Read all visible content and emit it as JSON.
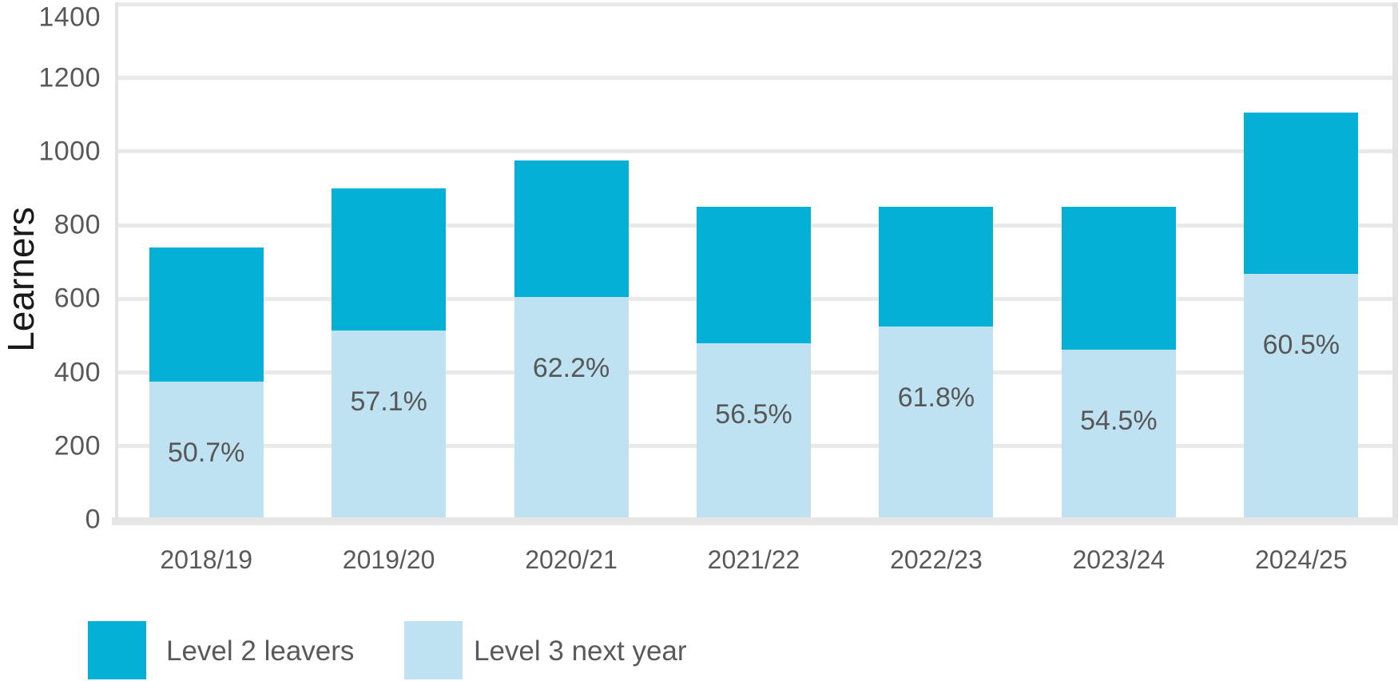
{
  "chart_data": {
    "type": "bar",
    "stacked": true,
    "title": "",
    "xlabel": "",
    "ylabel": "Learners",
    "ylim": [
      0,
      1400
    ],
    "ytick_step": 200,
    "yticks": [
      0,
      200,
      400,
      600,
      800,
      1000,
      1200,
      1400
    ],
    "grid": true,
    "legend_position": "bottom-left",
    "categories": [
      "2018/19",
      "2019/20",
      "2020/21",
      "2021/22",
      "2022/23",
      "2023/24",
      "2024/25"
    ],
    "totals": [
      740,
      900,
      975,
      850,
      850,
      850,
      1105
    ],
    "series": [
      {
        "name": "Level 2 leavers",
        "color": "#04b0d6",
        "values": [
          365,
          386,
          369,
          370,
          325,
          387,
          436
        ]
      },
      {
        "name": "Level 3 next year",
        "color": "#bfe2f2",
        "values": [
          375,
          514,
          606,
          480,
          525,
          463,
          669
        ]
      }
    ],
    "bar_labels": [
      "50.7%",
      "57.1%",
      "62.2%",
      "56.5%",
      "61.8%",
      "54.5%",
      "60.5%"
    ]
  },
  "legend": {
    "items": [
      {
        "label": "Level 2 leavers",
        "color": "#04b0d6"
      },
      {
        "label": "Level 3 next year",
        "color": "#bfe2f2"
      }
    ]
  },
  "colors": {
    "level2": "#04b0d6",
    "level3": "#bfe2f2",
    "gridline": "#e9e9e9",
    "axis_band": "#e6e6e6",
    "tick_text": "#595959",
    "axis_title_text": "#1a1a1a"
  }
}
